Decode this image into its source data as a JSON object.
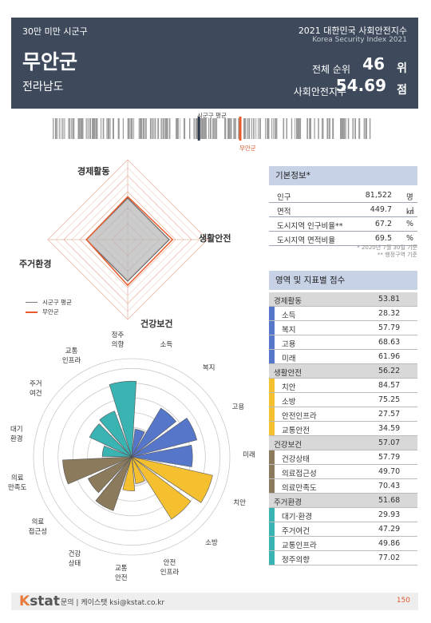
{
  "header": {
    "category": "30만 미만 시군구",
    "region_name": "무안군",
    "province": "전라남도",
    "index_title": "2021 대한민국 사회안전지수",
    "index_title_en": "Korea Security Index 2021",
    "rank_label": "전체 순위",
    "rank_value": "46",
    "rank_unit": "위",
    "score_label": "사회안전지수",
    "score_value": "54.69",
    "score_unit": "점"
  },
  "distribution": {
    "avg_label": "시군구 평균",
    "region_label": "무안군",
    "avg_position_pct": 0.449,
    "region_position_pct": 0.576
  },
  "radar": {
    "axes": [
      "경제활동",
      "생활안전",
      "건강보건",
      "주거환경"
    ],
    "average_values": [
      52,
      52,
      52,
      52
    ],
    "region_values": [
      53.81,
      56.22,
      57.07,
      51.68
    ],
    "scale_max": 100,
    "legend": [
      {
        "label": "시군구 평균",
        "color": "#777777"
      },
      {
        "label": "무안군",
        "color": "#e85a2a"
      }
    ]
  },
  "polar": {
    "labels": [
      [
        "소득"
      ],
      [
        "복지"
      ],
      [
        "고용"
      ],
      [
        "미래"
      ],
      [
        "치안"
      ],
      [
        "소방"
      ],
      [
        "안전",
        "인프라"
      ],
      [
        "교통",
        "안전"
      ],
      [
        "건강",
        "상태"
      ],
      [
        "의료",
        "접근성"
      ],
      [
        "의료",
        "만족도"
      ],
      [
        "대기",
        "환경"
      ],
      [
        "주거",
        "여건"
      ],
      [
        "교통",
        "인프라"
      ],
      [
        "정주",
        "의향"
      ]
    ],
    "values": [
      28.32,
      57.79,
      68.63,
      61.96,
      84.57,
      75.25,
      27.57,
      34.59,
      57.79,
      49.7,
      70.43,
      29.93,
      47.29,
      49.86,
      77.02
    ],
    "group_colors": [
      "#5576c9",
      "#5576c9",
      "#5576c9",
      "#5576c9",
      "#f5c030",
      "#f5c030",
      "#f5c030",
      "#f5c030",
      "#8c7a5c",
      "#8c7a5c",
      "#8c7a5c",
      "#3ab3b3",
      "#3ab3b3",
      "#3ab3b3",
      "#3ab3b3"
    ]
  },
  "basic_info": {
    "title": "기본정보*",
    "rows": [
      {
        "label": "인구",
        "value": "81,522",
        "unit": "명"
      },
      {
        "label": "면적",
        "value": "449.7",
        "unit": "㎢"
      },
      {
        "label": "도시지역 인구비율**",
        "value": "67.2",
        "unit": "%"
      },
      {
        "label": "도시지역 면적비율",
        "value": "69.5",
        "unit": "%"
      }
    ],
    "note1": "* 2020년 7월 30일 기준",
    "note2": "** 행정구역 기준"
  },
  "scores": {
    "title": "영역 및 지표별 점수",
    "sections": [
      {
        "name": "경제활동",
        "score": "53.81",
        "color": "#5576c9",
        "items": [
          {
            "name": "소득",
            "score": "28.32"
          },
          {
            "name": "복지",
            "score": "57.79"
          },
          {
            "name": "고용",
            "score": "68.63"
          },
          {
            "name": "미래",
            "score": "61.96"
          }
        ]
      },
      {
        "name": "생활안전",
        "score": "56.22",
        "color": "#f5c030",
        "items": [
          {
            "name": "치안",
            "score": "84.57"
          },
          {
            "name": "소방",
            "score": "75.25"
          },
          {
            "name": "안전인프라",
            "score": "27.57"
          },
          {
            "name": "교통안전",
            "score": "34.59"
          }
        ]
      },
      {
        "name": "건강보건",
        "score": "57.07",
        "color": "#8c7a5c",
        "items": [
          {
            "name": "건강상태",
            "score": "57.79"
          },
          {
            "name": "의료접근성",
            "score": "49.70"
          },
          {
            "name": "의료만족도",
            "score": "70.43"
          }
        ]
      },
      {
        "name": "주거환경",
        "score": "51.68",
        "color": "#3ab3b3",
        "items": [
          {
            "name": "대기·환경",
            "score": "29.93"
          },
          {
            "name": "주거여건",
            "score": "47.29"
          },
          {
            "name": "교통인프라",
            "score": "49.86"
          },
          {
            "name": "정주의향",
            "score": "77.02"
          }
        ]
      }
    ]
  },
  "footer": {
    "logo_k": "K",
    "logo_rest": "stat",
    "contact": "문의 | 케이스탯 ksi@kstat.co.kr",
    "page": "150"
  }
}
